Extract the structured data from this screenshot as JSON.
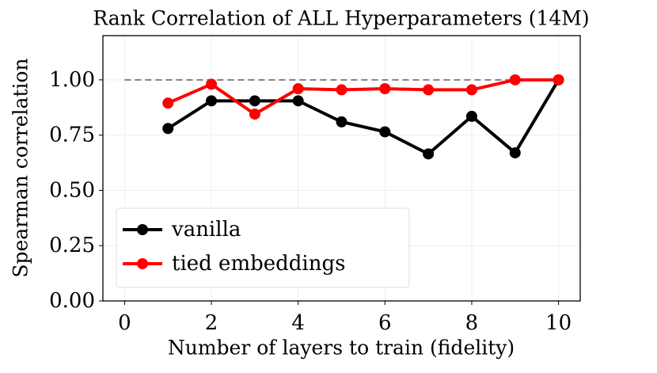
{
  "chart_data": {
    "type": "line",
    "title": "Rank Correlation of ALL Hyperparameters (14M)",
    "x_label": "Number of layers to train (fidelity)",
    "y_label": "Spearman correlation",
    "x": [
      1,
      2,
      3,
      4,
      5,
      6,
      7,
      8,
      9,
      10
    ],
    "series": [
      {
        "name": "vanilla",
        "color": "#000000",
        "values": [
          0.78,
          0.905,
          0.905,
          0.905,
          0.81,
          0.765,
          0.665,
          0.835,
          0.67,
          1.0
        ]
      },
      {
        "name": "tied embeddings",
        "color": "#ff0000",
        "values": [
          0.895,
          0.98,
          0.845,
          0.96,
          0.955,
          0.96,
          0.955,
          0.955,
          1.0,
          1.0
        ]
      }
    ],
    "reference_line": {
      "y": 1.0,
      "x": [
        0,
        10
      ],
      "color": "#808080"
    },
    "xlim": [
      -0.5,
      10.5
    ],
    "ylim": [
      0,
      1.2
    ],
    "xticks": [
      0,
      2,
      4,
      6,
      8,
      10
    ],
    "yticks": [
      {
        "value": 0,
        "label": "0.00"
      },
      {
        "value": 0.25,
        "label": "0.25"
      },
      {
        "value": 0.5,
        "label": "0.50"
      },
      {
        "value": 0.75,
        "label": "0.75"
      },
      {
        "value": 1.0,
        "label": "1.00"
      }
    ],
    "grid": true,
    "legend": "lower left"
  }
}
